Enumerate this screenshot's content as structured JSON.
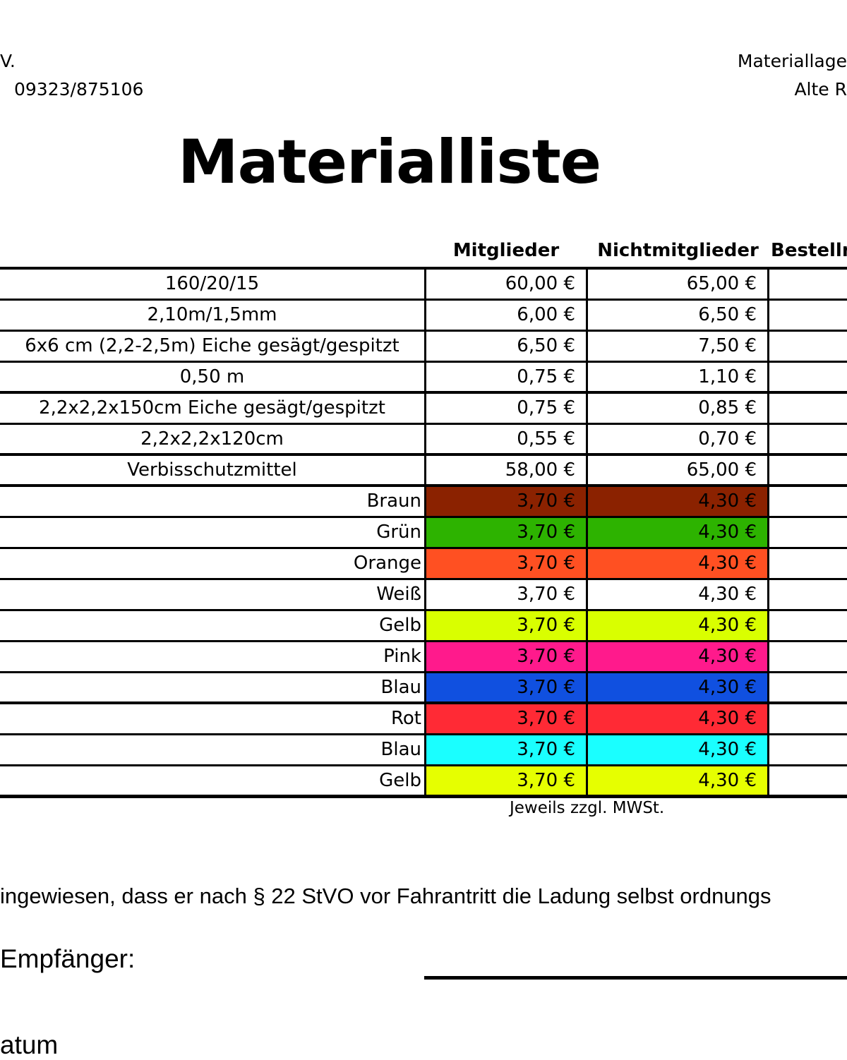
{
  "header": {
    "left_line1": "V.",
    "left_line2": "09323/875106",
    "right_line1": "Materiallage",
    "right_line2": "Alte R"
  },
  "title": "Materialliste",
  "table": {
    "columns": [
      "Mitglieder",
      "Nichtmitglieder",
      "Bestelln"
    ],
    "rows": [
      {
        "item": "160/20/15",
        "members": "60,00 €",
        "non_members": "65,00 €"
      },
      {
        "item": "2,10m/1,5mm",
        "members": "6,00 €",
        "non_members": "6,50 €"
      },
      {
        "item": "6x6 cm (2,2-2,5m) Eiche gesägt/gespitzt",
        "members": "6,50 €",
        "non_members": "7,50 €"
      },
      {
        "item": "0,50 m",
        "members": "0,75 €",
        "non_members": "1,10 €"
      },
      {
        "item": "2,2x2,2x150cm  Eiche gesägt/gespitzt",
        "members": "0,75 €",
        "non_members": "0,85 €"
      },
      {
        "item": "2,2x2,2x120cm",
        "members": "0,55 €",
        "non_members": "0,70 €"
      },
      {
        "item": "Verbisschutzmittel",
        "members": "58,00 €",
        "non_members": "65,00 €"
      },
      {
        "item": "Braun",
        "members": "3,70 €",
        "non_members": "4,30 €",
        "color": "#8b2200"
      },
      {
        "item": "Grün",
        "members": "3,70 €",
        "non_members": "4,30 €",
        "color": "#2db300"
      },
      {
        "item": "Orange",
        "members": "3,70 €",
        "non_members": "4,30 €",
        "color": "#ff5022"
      },
      {
        "item": "Weiß",
        "members": "3,70 €",
        "non_members": "4,30 €",
        "color": "#ffffff"
      },
      {
        "item": "Gelb",
        "members": "3,70 €",
        "non_members": "4,30 €",
        "color": "#d9ff00"
      },
      {
        "item": "Pink",
        "members": "3,70 €",
        "non_members": "4,30 €",
        "color": "#ff1a8c"
      },
      {
        "item": "Blau",
        "members": "3,70 €",
        "non_members": "4,30 €",
        "color": "#1050e0"
      },
      {
        "item": "Rot",
        "members": "3,70 €",
        "non_members": "4,30 €",
        "color": "#ff2a35"
      },
      {
        "item": "Blau",
        "members": "3,70 €",
        "non_members": "4,30 €",
        "color": "#1affff"
      },
      {
        "item": "Gelb",
        "members": "3,70 €",
        "non_members": "4,30 €",
        "color": "#e6ff00"
      }
    ],
    "note": "Jeweils zzgl. MWSt."
  },
  "footer": {
    "notice": "ingewiesen, dass er nach § 22 StVO vor Fahrantritt die Ladung selbst ordnungs",
    "recipient": "Empfänger:",
    "date": "atum"
  }
}
